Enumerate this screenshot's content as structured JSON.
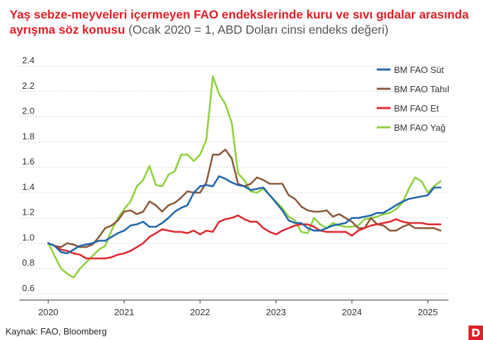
{
  "header": {
    "title_bold": "Yaş sebze-meyveleri içermeyen FAO endekslerinde kuru ve sıvı gıdalar arasında ayrışma söz konusu",
    "title_note": "(Ocak 2020 = 1, ABD Doları cinsi endeks değeri)"
  },
  "footer": {
    "source": "Kaynak: FAO, Bloomberg",
    "logo_letter": "D"
  },
  "chart_data": {
    "type": "line",
    "title": "Yaş sebze-meyveleri içermeyen FAO endekslerinde kuru ve sıvı gıdalar arasında ayrışma söz konusu",
    "subtitle": "(Ocak 2020 = 1, ABD Doları cinsi endeks değeri)",
    "xlabel": "",
    "ylabel": "",
    "xlim": [
      2020.0,
      2025.2
    ],
    "ylim": [
      0.6,
      2.4
    ],
    "y_ticks": [
      0.6,
      0.8,
      1.0,
      1.2,
      1.4,
      1.6,
      1.8,
      2.0,
      2.2,
      2.4
    ],
    "y_tick_labels": [
      "0.6",
      "0.8",
      "1.0",
      "1.2",
      "1.4",
      "1.6",
      "1.8",
      "2.0",
      "2.2",
      "2.4"
    ],
    "x_ticks": [
      2020,
      2021,
      2022,
      2023,
      2024,
      2025
    ],
    "x_tick_labels": [
      "2020",
      "2021",
      "2022",
      "2023",
      "2024",
      "2025"
    ],
    "grid": "horizontal",
    "legend_position": "top-right",
    "x": [
      2020.0,
      2020.083,
      2020.167,
      2020.25,
      2020.333,
      2020.417,
      2020.5,
      2020.583,
      2020.667,
      2020.75,
      2020.833,
      2020.917,
      2021.0,
      2021.083,
      2021.167,
      2021.25,
      2021.333,
      2021.417,
      2021.5,
      2021.583,
      2021.667,
      2021.75,
      2021.833,
      2021.917,
      2022.0,
      2022.083,
      2022.167,
      2022.25,
      2022.333,
      2022.417,
      2022.5,
      2022.583,
      2022.667,
      2022.75,
      2022.833,
      2022.917,
      2023.0,
      2023.083,
      2023.167,
      2023.25,
      2023.333,
      2023.417,
      2023.5,
      2023.583,
      2023.667,
      2023.75,
      2023.833,
      2023.917,
      2024.0,
      2024.083,
      2024.167,
      2024.25,
      2024.333,
      2024.417,
      2024.5,
      2024.583,
      2024.667,
      2024.75,
      2024.833,
      2024.917,
      2025.0,
      2025.083,
      2025.167
    ],
    "series": [
      {
        "name": "BM FAO Süt",
        "color": "#2166ac",
        "values": [
          1.0,
          0.98,
          0.93,
          0.92,
          0.95,
          0.98,
          0.99,
          1.0,
          1.02,
          1.02,
          1.05,
          1.08,
          1.1,
          1.14,
          1.15,
          1.17,
          1.13,
          1.13,
          1.16,
          1.2,
          1.25,
          1.28,
          1.3,
          1.4,
          1.45,
          1.46,
          1.45,
          1.53,
          1.51,
          1.48,
          1.46,
          1.45,
          1.42,
          1.43,
          1.44,
          1.38,
          1.32,
          1.26,
          1.18,
          1.16,
          1.16,
          1.12,
          1.1,
          1.1,
          1.12,
          1.14,
          1.15,
          1.16,
          1.2,
          1.2,
          1.21,
          1.22,
          1.24,
          1.24,
          1.27,
          1.3,
          1.33,
          1.35,
          1.36,
          1.37,
          1.38,
          1.44,
          1.44
        ]
      },
      {
        "name": "BM FAO Tahıl",
        "color": "#8c5a3c",
        "values": [
          1.0,
          0.98,
          0.97,
          1.0,
          0.99,
          0.97,
          0.97,
          0.99,
          1.05,
          1.12,
          1.14,
          1.18,
          1.25,
          1.26,
          1.23,
          1.25,
          1.33,
          1.3,
          1.25,
          1.3,
          1.32,
          1.36,
          1.41,
          1.4,
          1.4,
          1.48,
          1.7,
          1.7,
          1.74,
          1.67,
          1.47,
          1.45,
          1.47,
          1.52,
          1.5,
          1.47,
          1.47,
          1.47,
          1.38,
          1.35,
          1.29,
          1.26,
          1.25,
          1.25,
          1.26,
          1.21,
          1.23,
          1.2,
          1.17,
          1.12,
          1.12,
          1.2,
          1.15,
          1.14,
          1.1,
          1.1,
          1.13,
          1.15,
          1.12,
          1.12,
          1.12,
          1.12,
          1.1
        ]
      },
      {
        "name": "BM FAO Et",
        "color": "#e0282e",
        "values": [
          1.0,
          0.98,
          0.95,
          0.94,
          0.92,
          0.91,
          0.88,
          0.88,
          0.88,
          0.88,
          0.89,
          0.91,
          0.92,
          0.94,
          0.97,
          1.0,
          1.05,
          1.08,
          1.11,
          1.1,
          1.09,
          1.09,
          1.08,
          1.1,
          1.07,
          1.1,
          1.09,
          1.17,
          1.19,
          1.2,
          1.22,
          1.19,
          1.17,
          1.17,
          1.12,
          1.09,
          1.07,
          1.1,
          1.12,
          1.14,
          1.15,
          1.15,
          1.13,
          1.1,
          1.09,
          1.09,
          1.09,
          1.09,
          1.06,
          1.1,
          1.12,
          1.14,
          1.15,
          1.16,
          1.17,
          1.19,
          1.17,
          1.16,
          1.16,
          1.16,
          1.15,
          1.15,
          1.15
        ]
      },
      {
        "name": "BM FAO Yağ",
        "color": "#8ed13d",
        "values": [
          1.0,
          0.9,
          0.8,
          0.76,
          0.73,
          0.8,
          0.85,
          0.9,
          0.95,
          0.98,
          1.1,
          1.2,
          1.27,
          1.33,
          1.45,
          1.5,
          1.61,
          1.46,
          1.45,
          1.54,
          1.57,
          1.7,
          1.7,
          1.65,
          1.7,
          1.82,
          2.32,
          2.18,
          2.1,
          1.95,
          1.55,
          1.5,
          1.41,
          1.4,
          1.43,
          1.38,
          1.33,
          1.28,
          1.21,
          1.18,
          1.09,
          1.08,
          1.2,
          1.15,
          1.12,
          1.16,
          1.14,
          1.13,
          1.13,
          1.14,
          1.19,
          1.2,
          1.21,
          1.23,
          1.24,
          1.27,
          1.32,
          1.43,
          1.52,
          1.49,
          1.4,
          1.45,
          1.49
        ]
      }
    ]
  }
}
